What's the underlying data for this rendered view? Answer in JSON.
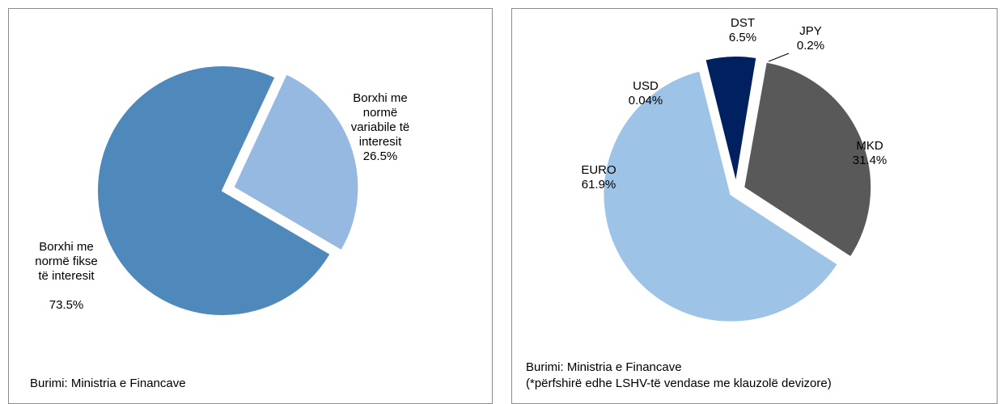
{
  "chart_data": [
    {
      "type": "pie",
      "categories": [
        "Borxhi me normë variabile të interesit",
        "Borxhi me normë fikse të interesit"
      ],
      "values": [
        26.5,
        73.5
      ],
      "value_labels": [
        "26.5%",
        "73.5%"
      ],
      "colors": [
        "#95b9e0",
        "#4f88bb"
      ],
      "source": "Burimi: Ministria e Financave"
    },
    {
      "type": "pie",
      "categories": [
        "DST",
        "JPY",
        "MKD",
        "EURO",
        "USD"
      ],
      "values": [
        6.5,
        0.2,
        31.4,
        61.9,
        0.04
      ],
      "value_labels": [
        "6.5%",
        "0.2%",
        "31.4%",
        "61.9%",
        "0.04%"
      ],
      "colors": [
        "#002060",
        "#002060",
        "#595959",
        "#9dc3e6",
        "#9dc3e6"
      ],
      "source": "Burimi: Ministria e Financave",
      "note": "(*përfshirë edhe LSHV-të vendase me klauzolë devizore)"
    }
  ]
}
